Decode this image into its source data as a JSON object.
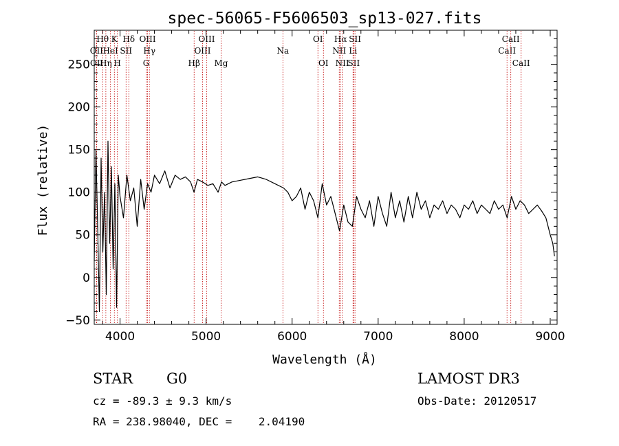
{
  "chart_data": {
    "type": "line",
    "title": "spec-56065-F5606503_sp13-027.fits",
    "xlabel": "Wavelength (Å)",
    "ylabel": "Flux (relative)",
    "xlim": [
      3700,
      9080
    ],
    "ylim": [
      -55,
      290
    ],
    "x_ticks": [
      4000,
      5000,
      6000,
      7000,
      8000,
      9000
    ],
    "y_ticks": [
      -50,
      0,
      50,
      100,
      150,
      200,
      250
    ],
    "grid": false,
    "series": [
      {
        "name": "flux",
        "x": [
          3700,
          3720,
          3740,
          3760,
          3780,
          3800,
          3820,
          3840,
          3860,
          3880,
          3900,
          3920,
          3940,
          3960,
          3980,
          4000,
          4040,
          4080,
          4120,
          4160,
          4200,
          4240,
          4280,
          4320,
          4360,
          4400,
          4460,
          4520,
          4580,
          4640,
          4700,
          4760,
          4820,
          4860,
          4900,
          4960,
          5020,
          5080,
          5140,
          5180,
          5220,
          5300,
          5400,
          5500,
          5600,
          5700,
          5800,
          5900,
          5950,
          6000,
          6050,
          6100,
          6150,
          6200,
          6250,
          6300,
          6350,
          6400,
          6450,
          6500,
          6550,
          6560,
          6600,
          6650,
          6700,
          6750,
          6800,
          6850,
          6900,
          6950,
          7000,
          7050,
          7100,
          7150,
          7200,
          7250,
          7300,
          7350,
          7400,
          7450,
          7500,
          7550,
          7600,
          7650,
          7700,
          7750,
          7800,
          7850,
          7900,
          7950,
          8000,
          8050,
          8100,
          8150,
          8200,
          8250,
          8300,
          8350,
          8400,
          8450,
          8500,
          8550,
          8600,
          8650,
          8700,
          8750,
          8800,
          8850,
          8900,
          8950,
          9000,
          9030,
          9050
        ],
        "y": [
          20,
          150,
          60,
          -40,
          140,
          30,
          100,
          -20,
          160,
          40,
          130,
          10,
          110,
          -35,
          120,
          95,
          70,
          120,
          90,
          105,
          60,
          115,
          80,
          110,
          100,
          120,
          110,
          125,
          105,
          120,
          115,
          118,
          112,
          100,
          115,
          112,
          108,
          110,
          100,
          112,
          108,
          112,
          114,
          116,
          118,
          115,
          110,
          105,
          100,
          90,
          95,
          105,
          80,
          100,
          90,
          70,
          110,
          85,
          95,
          75,
          55,
          60,
          85,
          65,
          60,
          95,
          80,
          70,
          90,
          60,
          95,
          75,
          60,
          100,
          70,
          90,
          65,
          95,
          70,
          100,
          80,
          90,
          70,
          85,
          80,
          90,
          75,
          85,
          80,
          70,
          85,
          80,
          90,
          75,
          85,
          80,
          75,
          90,
          80,
          85,
          70,
          95,
          80,
          90,
          85,
          75,
          80,
          85,
          78,
          70,
          50,
          40,
          25
        ]
      }
    ],
    "lines": [
      {
        "label": "Hθ",
        "wl": 3798,
        "row": 1
      },
      {
        "label": "OII",
        "wl": 3727,
        "row": 2
      },
      {
        "label": "OII",
        "wl": 3729,
        "row": 3
      },
      {
        "label": "Hη",
        "wl": 3835,
        "row": 3
      },
      {
        "label": "HeI",
        "wl": 3889,
        "row": 2
      },
      {
        "label": "K",
        "wl": 3934,
        "row": 1
      },
      {
        "label": "H",
        "wl": 3969,
        "row": 3
      },
      {
        "label": "SII",
        "wl": 4070,
        "row": 2
      },
      {
        "label": "Hδ",
        "wl": 4102,
        "row": 1
      },
      {
        "label": "G",
        "wl": 4304,
        "row": 3
      },
      {
        "label": "OIII",
        "wl": 4320,
        "row": 1
      },
      {
        "label": "Hγ",
        "wl": 4341,
        "row": 2
      },
      {
        "label": "Hβ",
        "wl": 4861,
        "row": 3
      },
      {
        "label": "OIII",
        "wl": 4959,
        "row": 2
      },
      {
        "label": "OIII",
        "wl": 5007,
        "row": 1
      },
      {
        "label": "Mg",
        "wl": 5175,
        "row": 3
      },
      {
        "label": "Na",
        "wl": 5893,
        "row": 2
      },
      {
        "label": "OI",
        "wl": 6300,
        "row": 1
      },
      {
        "label": "OI",
        "wl": 6364,
        "row": 3
      },
      {
        "label": "NII",
        "wl": 6548,
        "row": 2
      },
      {
        "label": "Hα",
        "wl": 6563,
        "row": 1
      },
      {
        "label": "NII",
        "wl": 6583,
        "row": 3
      },
      {
        "label": "Li",
        "wl": 6708,
        "row": 2
      },
      {
        "label": "SII",
        "wl": 6717,
        "row": 3
      },
      {
        "label": "SII",
        "wl": 6731,
        "row": 1
      },
      {
        "label": "CaII",
        "wl": 8498,
        "row": 2
      },
      {
        "label": "CaII",
        "wl": 8542,
        "row": 1
      },
      {
        "label": "CaII",
        "wl": 8662,
        "row": 3
      }
    ]
  },
  "info": {
    "class": "STAR",
    "subclass": "G0",
    "survey": "LAMOST DR3",
    "cz": "cz = -89.3 ± 9.3 km/s",
    "obs_date": "Obs-Date: 20120517",
    "radec": "RA = 238.98040, DEC =    2.04190"
  }
}
